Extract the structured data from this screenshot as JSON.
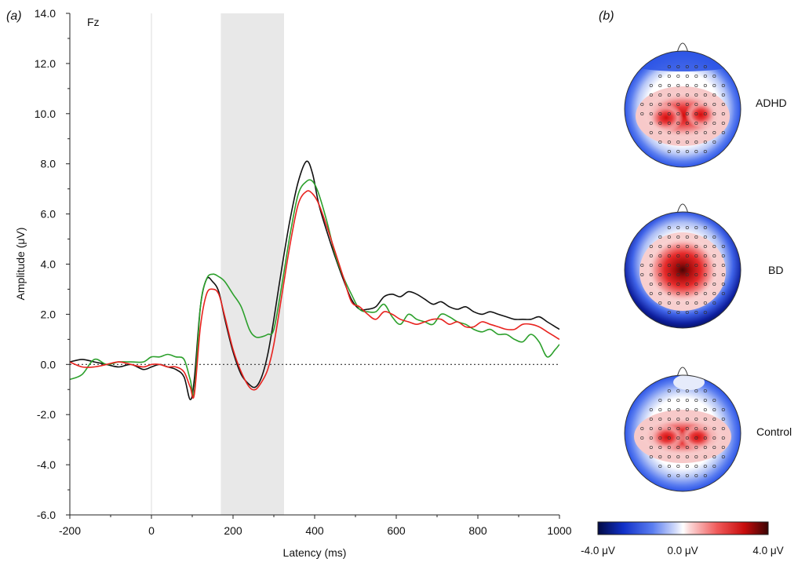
{
  "panel_a": {
    "label_prefix": "(",
    "label_letter": "a",
    "label_suffix": ")",
    "channel": "Fz"
  },
  "panel_b": {
    "label_prefix": "(",
    "label_letter": "b",
    "label_suffix": ")"
  },
  "colors": {
    "ADHD": "#2ca02c",
    "BD": "#e8231f",
    "Control": "#111111",
    "shade": "#e8e8e8"
  },
  "chart_data": [
    {
      "type": "line",
      "xlabel": "Latency (ms)",
      "ylabel": "Amplitude (μV)",
      "xlim": [
        -200,
        1000
      ],
      "ylim": [
        -6.0,
        14.0
      ],
      "xticks": [
        -200,
        0,
        200,
        400,
        600,
        800,
        1000
      ],
      "xtick_labels": [
        "-200",
        "0",
        "200",
        "400",
        "600",
        "800",
        "1000"
      ],
      "yticks": [
        -6,
        -4,
        -2,
        0,
        2,
        4,
        6,
        8,
        10,
        12,
        14
      ],
      "ytick_labels": [
        "-6.0",
        "-4.0",
        "-2.0",
        "0.0",
        "2.0",
        "4.0",
        "6.0",
        "8.0",
        "10.0",
        "12.0",
        "14.0"
      ],
      "zero_reference": "dotted",
      "shaded_window_ms": [
        170,
        325
      ],
      "x": [
        -200,
        -170,
        -140,
        -110,
        -80,
        -50,
        -20,
        0,
        20,
        40,
        60,
        80,
        95,
        105,
        120,
        135,
        150,
        165,
        180,
        200,
        220,
        240,
        255,
        270,
        285,
        300,
        320,
        340,
        360,
        380,
        395,
        410,
        430,
        450,
        470,
        490,
        510,
        530,
        550,
        570,
        590,
        610,
        630,
        650,
        670,
        690,
        710,
        730,
        750,
        770,
        790,
        810,
        830,
        850,
        870,
        890,
        910,
        930,
        950,
        970,
        990,
        1000
      ],
      "series": [
        {
          "key": "Control",
          "values": [
            0.1,
            0.2,
            0.1,
            0.0,
            -0.1,
            0.0,
            -0.2,
            -0.1,
            0.0,
            -0.1,
            -0.2,
            -0.5,
            -1.4,
            -0.6,
            2.3,
            3.4,
            3.3,
            2.9,
            1.8,
            0.5,
            -0.4,
            -0.8,
            -0.9,
            -0.5,
            0.4,
            1.8,
            3.9,
            5.8,
            7.3,
            8.1,
            7.6,
            6.4,
            5.3,
            4.3,
            3.4,
            2.6,
            2.2,
            2.2,
            2.3,
            2.7,
            2.8,
            2.7,
            2.9,
            2.8,
            2.6,
            2.4,
            2.5,
            2.3,
            2.2,
            2.3,
            2.1,
            2.0,
            2.1,
            2.0,
            1.9,
            1.8,
            1.8,
            1.8,
            1.9,
            1.7,
            1.5,
            1.4
          ]
        },
        {
          "key": "ADHD",
          "values": [
            -0.6,
            -0.4,
            0.2,
            0.0,
            0.1,
            0.1,
            0.1,
            0.3,
            0.3,
            0.4,
            0.3,
            0.2,
            -0.6,
            -1.1,
            2.3,
            3.4,
            3.6,
            3.5,
            3.3,
            2.8,
            2.3,
            1.4,
            1.1,
            1.1,
            1.2,
            1.4,
            3.2,
            5.2,
            6.8,
            7.3,
            7.3,
            6.8,
            5.7,
            4.4,
            3.5,
            2.8,
            2.2,
            2.1,
            2.1,
            2.4,
            1.9,
            1.6,
            2.0,
            1.8,
            1.7,
            1.6,
            2.0,
            1.9,
            1.7,
            1.6,
            1.4,
            1.3,
            1.4,
            1.2,
            1.2,
            1.0,
            0.9,
            1.2,
            0.9,
            0.3,
            0.6,
            0.8
          ]
        },
        {
          "key": "BD",
          "values": [
            0.1,
            -0.1,
            -0.1,
            0.0,
            0.1,
            0.0,
            -0.1,
            0.0,
            0.0,
            -0.1,
            -0.1,
            -0.3,
            -0.9,
            -1.2,
            1.5,
            2.8,
            3.0,
            2.8,
            1.9,
            0.6,
            -0.3,
            -0.9,
            -1.0,
            -0.7,
            -0.2,
            0.8,
            2.8,
            4.8,
            6.4,
            6.9,
            6.8,
            6.4,
            5.5,
            4.5,
            3.5,
            2.5,
            2.3,
            2.0,
            1.8,
            2.1,
            2.0,
            1.8,
            1.7,
            1.6,
            1.7,
            1.8,
            1.8,
            1.6,
            1.7,
            1.5,
            1.5,
            1.7,
            1.6,
            1.5,
            1.4,
            1.4,
            1.6,
            1.6,
            1.5,
            1.3,
            1.1,
            1.0
          ]
        }
      ]
    },
    {
      "type": "heatmap",
      "colorbar": {
        "min_label": "-4.0 μV",
        "mid_label": "0.0 μV",
        "max_label": "4.0 μV",
        "range": [
          -4.0,
          4.0
        ]
      },
      "maps": [
        {
          "label": "ADHD",
          "pattern": "bilateral-red-blobs-blue-rim"
        },
        {
          "label": "BD",
          "pattern": "central-dark-red-strong-blue-rim"
        },
        {
          "label": "Control",
          "pattern": "bilateral-red-band-blue-rim"
        }
      ]
    }
  ]
}
